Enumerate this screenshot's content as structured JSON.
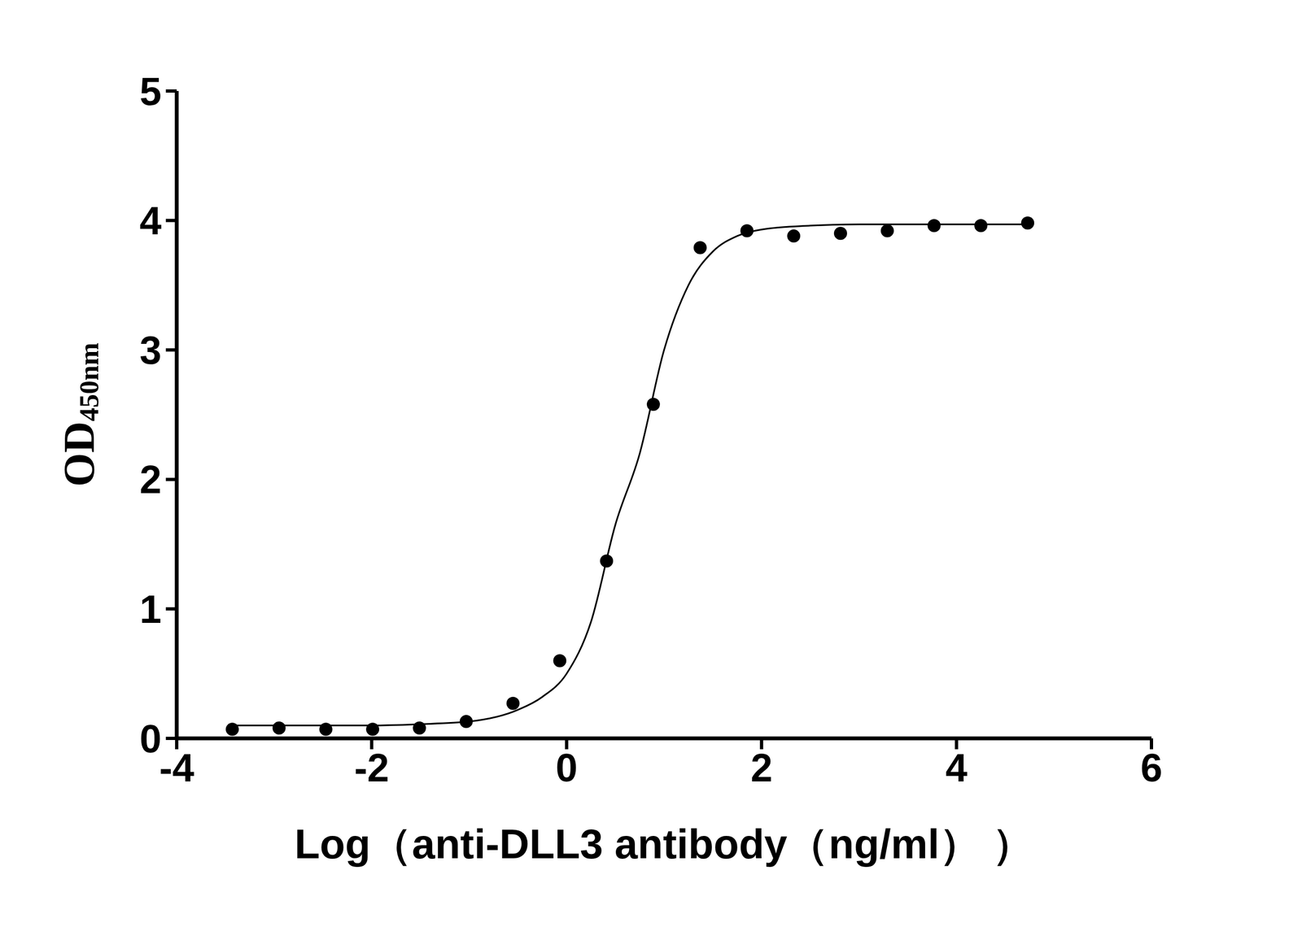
{
  "chart_data": {
    "type": "scatter",
    "xlabel": "Log（anti-DLL3 antibody（ng/ml） ）",
    "ylabel": {
      "text": "OD",
      "subscript": "450nm"
    },
    "x": [
      -3.43,
      -2.95,
      -2.47,
      -1.99,
      -1.51,
      -1.03,
      -0.55,
      -0.07,
      0.41,
      0.89,
      1.37,
      1.85,
      2.33,
      2.81,
      3.29,
      3.77,
      4.25,
      4.73
    ],
    "values": [
      0.07,
      0.08,
      0.07,
      0.07,
      0.08,
      0.13,
      0.27,
      0.6,
      1.37,
      2.58,
      3.79,
      3.92,
      3.88,
      3.9,
      3.92,
      3.96,
      3.96,
      3.98
    ],
    "fit": {
      "x": [
        -3.43,
        -2.5,
        -2,
        -1.5,
        -1,
        -0.5,
        -0.25,
        0,
        0.25,
        0.5,
        0.75,
        1,
        1.25,
        1.5,
        1.75,
        2,
        2.5,
        3,
        4,
        4.73
      ],
      "values": [
        0.1,
        0.1,
        0.1,
        0.11,
        0.13,
        0.22,
        0.32,
        0.5,
        0.9,
        1.65,
        2.2,
        3.0,
        3.5,
        3.76,
        3.88,
        3.93,
        3.96,
        3.97,
        3.97,
        3.97
      ]
    },
    "color": "#000000",
    "marker": "circle",
    "line_style": "solid",
    "xlim": [
      -4,
      6
    ],
    "xticks": [
      -4,
      -2,
      0,
      2,
      4,
      6
    ],
    "ylim": [
      0,
      5
    ],
    "yticks": [
      0,
      1,
      2,
      3,
      4,
      5
    ],
    "grid": false
  }
}
